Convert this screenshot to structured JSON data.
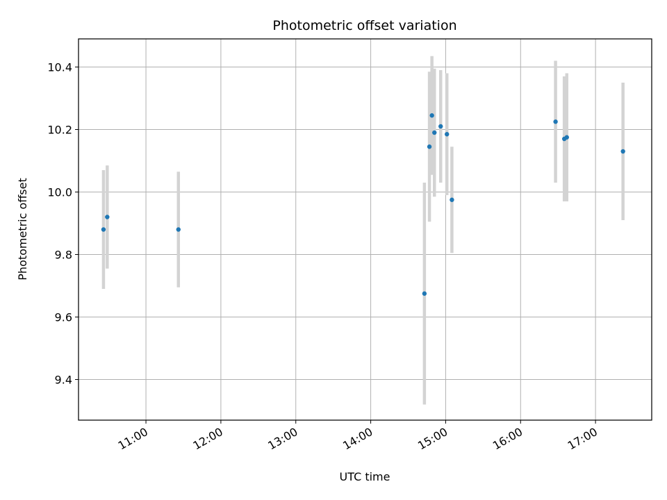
{
  "chart_data": {
    "type": "scatter",
    "title": "Photometric offset variation",
    "xlabel": "UTC time",
    "ylabel": "Photometric offset",
    "x_ticks": [
      "11:00",
      "12:00",
      "13:00",
      "14:00",
      "15:00",
      "16:00",
      "17:00"
    ],
    "y_ticks": [
      "9.4",
      "9.6",
      "9.8",
      "10.0",
      "10.2",
      "10.4"
    ],
    "xlim": [
      "10:06",
      "17:45"
    ],
    "ylim": [
      9.27,
      10.49
    ],
    "grid": true,
    "point_color": "#1f77b4",
    "errorbar_color": "#d3d3d3",
    "points": [
      {
        "t": "10:26",
        "y": 9.88,
        "err": 0.19
      },
      {
        "t": "10:29",
        "y": 9.92,
        "err": 0.165
      },
      {
        "t": "11:26",
        "y": 9.88,
        "err": 0.185
      },
      {
        "t": "14:43",
        "y": 9.675,
        "err": 0.355
      },
      {
        "t": "14:47",
        "y": 10.145,
        "err": 0.24
      },
      {
        "t": "14:49",
        "y": 10.245,
        "err": 0.19
      },
      {
        "t": "14:51",
        "y": 10.19,
        "err": 0.205
      },
      {
        "t": "14:56",
        "y": 10.21,
        "err": 0.18
      },
      {
        "t": "15:01",
        "y": 10.185,
        "err": 0.195
      },
      {
        "t": "15:05",
        "y": 9.975,
        "err": 0.17
      },
      {
        "t": "16:28",
        "y": 10.225,
        "err": 0.195
      },
      {
        "t": "16:35",
        "y": 10.17,
        "err": 0.2
      },
      {
        "t": "16:37",
        "y": 10.175,
        "err": 0.205
      },
      {
        "t": "17:22",
        "y": 10.13,
        "err": 0.22
      }
    ]
  }
}
